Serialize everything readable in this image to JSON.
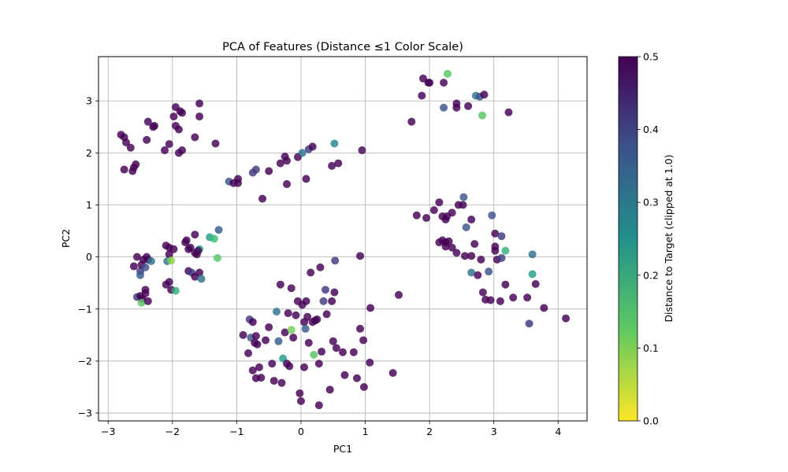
{
  "chart_data": {
    "type": "scatter",
    "title": "PCA of Features (Distance ≤1 Color Scale)",
    "xlabel": "PC1",
    "ylabel": "PC2",
    "xlim": [
      -3.15,
      4.45
    ],
    "ylim": [
      -3.15,
      3.85
    ],
    "xticks": [
      -3,
      -2,
      -1,
      0,
      1,
      2,
      3,
      4
    ],
    "xtick_labels": [
      "−3",
      "−2",
      "−1",
      "0",
      "1",
      "2",
      "3",
      "4"
    ],
    "yticks": [
      -3,
      -2,
      -1,
      0,
      1,
      2,
      3
    ],
    "ytick_labels": [
      "−3",
      "−2",
      "−1",
      "0",
      "1",
      "2",
      "3"
    ],
    "grid": true,
    "colorbar": {
      "label": "Distance to Target (clipped at 1.0)",
      "range": [
        0,
        0.5
      ],
      "ticks": [
        0,
        0.1,
        0.2,
        0.3,
        0.4,
        0.5
      ],
      "tick_labels": [
        "0.0",
        "0.1",
        "0.2",
        "0.3",
        "0.4",
        "0.5"
      ],
      "colormap": "viridis_r"
    },
    "points": [
      [
        -2.8,
        2.35,
        0.5
      ],
      [
        -2.75,
        2.3,
        0.5
      ],
      [
        -2.72,
        2.2,
        0.5
      ],
      [
        -2.65,
        2.1,
        0.5
      ],
      [
        -2.75,
        1.68,
        0.5
      ],
      [
        -2.62,
        1.65,
        0.5
      ],
      [
        -2.6,
        1.72,
        0.5
      ],
      [
        -2.57,
        1.78,
        0.5
      ],
      [
        -2.4,
        2.25,
        0.5
      ],
      [
        -2.38,
        2.6,
        0.5
      ],
      [
        -2.3,
        2.5,
        0.5
      ],
      [
        -2.28,
        2.52,
        0.5
      ],
      [
        -2.12,
        2.05,
        0.5
      ],
      [
        -2.05,
        2.17,
        0.5
      ],
      [
        -1.98,
        2.7,
        0.5
      ],
      [
        -1.95,
        2.52,
        0.5
      ],
      [
        -1.95,
        2.88,
        0.5
      ],
      [
        -1.9,
        2.45,
        0.5
      ],
      [
        -1.88,
        2.8,
        0.5
      ],
      [
        -1.85,
        2.05,
        0.5
      ],
      [
        -1.9,
        2.0,
        0.5
      ],
      [
        -1.85,
        2.77,
        0.5
      ],
      [
        -1.65,
        2.3,
        0.5
      ],
      [
        -1.58,
        2.95,
        0.5
      ],
      [
        -1.58,
        2.7,
        0.5
      ],
      [
        -1.33,
        2.18,
        0.5
      ],
      [
        -1.12,
        1.45,
        0.42
      ],
      [
        -1.05,
        1.42,
        0.5
      ],
      [
        -0.98,
        1.5,
        0.5
      ],
      [
        -0.98,
        1.42,
        0.5
      ],
      [
        -0.75,
        1.62,
        0.45
      ],
      [
        -0.7,
        1.68,
        0.45
      ],
      [
        -0.6,
        1.12,
        0.5
      ],
      [
        -0.5,
        1.65,
        0.5
      ],
      [
        -0.32,
        1.8,
        0.5
      ],
      [
        -0.25,
        1.93,
        0.5
      ],
      [
        -0.22,
        1.85,
        0.5
      ],
      [
        -0.22,
        1.4,
        0.5
      ],
      [
        -0.05,
        1.92,
        0.5
      ],
      [
        0.02,
        2.0,
        0.35
      ],
      [
        0.08,
        1.5,
        0.5
      ],
      [
        0.12,
        2.07,
        0.45
      ],
      [
        0.18,
        2.12,
        0.5
      ],
      [
        0.48,
        1.75,
        0.5
      ],
      [
        0.52,
        2.18,
        0.3
      ],
      [
        0.58,
        1.8,
        0.5
      ],
      [
        0.95,
        2.05,
        0.5
      ],
      [
        1.72,
        2.6,
        0.5
      ],
      [
        1.88,
        3.1,
        0.5
      ],
      [
        1.9,
        3.43,
        0.5
      ],
      [
        1.98,
        3.35,
        0.5
      ],
      [
        2.0,
        3.35,
        0.5
      ],
      [
        2.22,
        2.87,
        0.42
      ],
      [
        2.22,
        3.35,
        0.5
      ],
      [
        2.28,
        3.52,
        0.15
      ],
      [
        2.42,
        2.95,
        0.5
      ],
      [
        2.42,
        2.87,
        0.5
      ],
      [
        2.6,
        2.9,
        0.5
      ],
      [
        2.72,
        3.1,
        0.35
      ],
      [
        2.78,
        3.08,
        0.42
      ],
      [
        2.85,
        3.12,
        0.5
      ],
      [
        2.82,
        2.72,
        0.15
      ],
      [
        3.23,
        2.78,
        0.5
      ],
      [
        1.8,
        0.8,
        0.5
      ],
      [
        1.95,
        0.75,
        0.5
      ],
      [
        2.07,
        0.9,
        0.5
      ],
      [
        2.15,
        1.05,
        0.5
      ],
      [
        2.2,
        0.78,
        0.5
      ],
      [
        2.25,
        0.72,
        0.5
      ],
      [
        2.27,
        0.78,
        0.5
      ],
      [
        2.35,
        0.85,
        0.5
      ],
      [
        2.45,
        1.0,
        0.5
      ],
      [
        2.53,
        1.15,
        0.42
      ],
      [
        2.52,
        1.0,
        0.5
      ],
      [
        2.57,
        0.57,
        0.42
      ],
      [
        2.65,
        0.72,
        0.5
      ],
      [
        2.15,
        0.28,
        0.5
      ],
      [
        2.2,
        0.32,
        0.5
      ],
      [
        2.25,
        0.28,
        0.5
      ],
      [
        2.3,
        0.3,
        0.5
      ],
      [
        2.25,
        0.2,
        0.5
      ],
      [
        2.35,
        0.18,
        0.5
      ],
      [
        2.42,
        0.08,
        0.5
      ],
      [
        2.55,
        0.02,
        0.5
      ],
      [
        2.65,
        0.02,
        0.5
      ],
      [
        2.7,
        0.25,
        0.5
      ],
      [
        2.8,
        -0.05,
        0.5
      ],
      [
        2.65,
        -0.3,
        0.35
      ],
      [
        2.75,
        -0.35,
        0.5
      ],
      [
        2.92,
        -0.28,
        0.42
      ],
      [
        2.97,
        0.8,
        0.42
      ],
      [
        3.02,
        0.45,
        0.5
      ],
      [
        3.02,
        0.2,
        0.5
      ],
      [
        3.02,
        0.12,
        0.5
      ],
      [
        3.05,
        -0.05,
        0.5
      ],
      [
        3.12,
        0.4,
        0.45
      ],
      [
        3.12,
        -0.02,
        0.45
      ],
      [
        3.18,
        0.12,
        0.2
      ],
      [
        2.83,
        -0.68,
        0.5
      ],
      [
        2.87,
        -0.82,
        0.5
      ],
      [
        2.95,
        -0.83,
        0.5
      ],
      [
        3.1,
        -0.85,
        0.5
      ],
      [
        3.18,
        -0.53,
        0.5
      ],
      [
        3.3,
        -0.78,
        0.5
      ],
      [
        3.52,
        -0.78,
        0.5
      ],
      [
        3.6,
        0.05,
        0.35
      ],
      [
        3.6,
        -0.33,
        0.25
      ],
      [
        3.65,
        -0.52,
        0.5
      ],
      [
        3.78,
        -0.98,
        0.5
      ],
      [
        3.55,
        -1.28,
        0.45
      ],
      [
        4.12,
        -1.18,
        0.5
      ],
      [
        -2.55,
        0.0,
        0.5
      ],
      [
        -2.6,
        -0.18,
        0.5
      ],
      [
        -2.5,
        -0.27,
        0.45
      ],
      [
        -2.48,
        -0.15,
        0.5
      ],
      [
        -2.45,
        -0.05,
        0.5
      ],
      [
        -2.4,
        0.0,
        0.5
      ],
      [
        -2.38,
        -0.05,
        0.5
      ],
      [
        -2.42,
        -0.2,
        0.42
      ],
      [
        -2.5,
        -0.35,
        0.4
      ],
      [
        -2.33,
        -0.08,
        0.35
      ],
      [
        -2.55,
        -0.77,
        0.45
      ],
      [
        -2.5,
        -0.75,
        0.5
      ],
      [
        -2.47,
        -0.8,
        0.5
      ],
      [
        -2.42,
        -0.7,
        0.5
      ],
      [
        -2.48,
        -0.88,
        0.15
      ],
      [
        -2.38,
        -0.85,
        0.5
      ],
      [
        -2.42,
        -0.63,
        0.5
      ],
      [
        -2.1,
        0.22,
        0.5
      ],
      [
        -2.05,
        0.18,
        0.5
      ],
      [
        -2.05,
        0.05,
        0.5
      ],
      [
        -2.08,
        -0.08,
        0.35
      ],
      [
        -2.02,
        -0.07,
        0.1
      ],
      [
        -1.98,
        0.15,
        0.5
      ],
      [
        -2.05,
        -0.48,
        0.5
      ],
      [
        -2.1,
        -0.53,
        0.5
      ],
      [
        -2.02,
        -0.63,
        0.5
      ],
      [
        -1.95,
        -0.65,
        0.2
      ],
      [
        -1.8,
        0.28,
        0.5
      ],
      [
        -1.78,
        0.32,
        0.5
      ],
      [
        -1.75,
        0.15,
        0.5
      ],
      [
        -1.72,
        0.18,
        0.5
      ],
      [
        -1.65,
        0.43,
        0.5
      ],
      [
        -1.65,
        0.08,
        0.5
      ],
      [
        -1.62,
        0.05,
        0.5
      ],
      [
        -1.58,
        0.15,
        0.25
      ],
      [
        -1.6,
        0.12,
        0.5
      ],
      [
        -1.75,
        -0.27,
        0.5
      ],
      [
        -1.7,
        -0.3,
        0.45
      ],
      [
        -1.65,
        -0.38,
        0.5
      ],
      [
        -1.58,
        -0.3,
        0.5
      ],
      [
        -1.55,
        -0.42,
        0.35
      ],
      [
        -1.42,
        0.38,
        0.25
      ],
      [
        -1.35,
        0.35,
        0.18
      ],
      [
        -1.28,
        0.52,
        0.4
      ],
      [
        -1.3,
        -0.02,
        0.15
      ],
      [
        -0.9,
        -1.5,
        0.5
      ],
      [
        -0.82,
        -1.85,
        0.5
      ],
      [
        -0.8,
        -1.2,
        0.45
      ],
      [
        -0.78,
        -1.55,
        0.42
      ],
      [
        -0.75,
        -1.25,
        0.5
      ],
      [
        -0.72,
        -1.65,
        0.5
      ],
      [
        -0.7,
        -1.52,
        0.5
      ],
      [
        -0.7,
        -2.33,
        0.5
      ],
      [
        -0.75,
        -2.18,
        0.5
      ],
      [
        -0.68,
        -1.68,
        0.5
      ],
      [
        -0.65,
        -2.12,
        0.5
      ],
      [
        -0.62,
        -2.32,
        0.5
      ],
      [
        -0.55,
        -1.6,
        0.5
      ],
      [
        -0.5,
        -1.35,
        0.5
      ],
      [
        -0.45,
        -2.05,
        0.5
      ],
      [
        -0.42,
        -2.38,
        0.5
      ],
      [
        -0.38,
        -1.05,
        0.35
      ],
      [
        -0.35,
        -1.62,
        0.4
      ],
      [
        -0.32,
        -0.53,
        0.5
      ],
      [
        -0.3,
        -2.42,
        0.5
      ],
      [
        -0.28,
        -1.95,
        0.25
      ],
      [
        -0.25,
        -1.45,
        0.5
      ],
      [
        -0.22,
        -2.05,
        0.5
      ],
      [
        -0.2,
        -1.08,
        0.5
      ],
      [
        -0.18,
        -2.1,
        0.5
      ],
      [
        -0.15,
        -0.6,
        0.5
      ],
      [
        -0.15,
        -1.4,
        0.12
      ],
      [
        -0.12,
        -1.55,
        0.5
      ],
      [
        -0.08,
        -1.12,
        0.5
      ],
      [
        -0.05,
        -0.85,
        0.5
      ],
      [
        -0.02,
        -2.62,
        0.5
      ],
      [
        0.0,
        -2.77,
        0.5
      ],
      [
        0.02,
        -0.92,
        0.5
      ],
      [
        0.05,
        -1.25,
        0.5
      ],
      [
        0.05,
        -2.12,
        0.5
      ],
      [
        0.07,
        -1.38,
        0.4
      ],
      [
        0.08,
        -0.85,
        0.5
      ],
      [
        0.1,
        -1.15,
        0.5
      ],
      [
        0.12,
        -1.65,
        0.5
      ],
      [
        0.15,
        -0.3,
        0.5
      ],
      [
        0.18,
        -1.25,
        0.5
      ],
      [
        0.2,
        -1.88,
        0.15
      ],
      [
        0.22,
        -1.22,
        0.5
      ],
      [
        0.25,
        -1.2,
        0.5
      ],
      [
        0.28,
        -2.05,
        0.5
      ],
      [
        0.28,
        -2.85,
        0.5
      ],
      [
        0.32,
        -1.82,
        0.5
      ],
      [
        0.35,
        -0.85,
        0.45
      ],
      [
        0.38,
        -0.63,
        0.45
      ],
      [
        0.4,
        -1.1,
        0.5
      ],
      [
        0.45,
        -2.55,
        0.5
      ],
      [
        0.48,
        -0.85,
        0.5
      ],
      [
        0.5,
        -1.62,
        0.5
      ],
      [
        0.52,
        -0.68,
        0.5
      ],
      [
        0.53,
        -0.07,
        0.45
      ],
      [
        0.55,
        -1.75,
        0.5
      ],
      [
        0.65,
        -1.83,
        0.5
      ],
      [
        0.68,
        -2.27,
        0.5
      ],
      [
        0.82,
        -1.83,
        0.5
      ],
      [
        0.87,
        -2.33,
        0.5
      ],
      [
        0.92,
        0.02,
        0.5
      ],
      [
        0.92,
        -1.38,
        0.5
      ],
      [
        0.97,
        -1.6,
        0.5
      ],
      [
        0.98,
        -2.5,
        0.5
      ],
      [
        1.07,
        -2.03,
        0.5
      ],
      [
        1.08,
        -0.98,
        0.5
      ],
      [
        1.43,
        -2.23,
        0.5
      ],
      [
        1.52,
        -0.73,
        0.5
      ],
      [
        0.3,
        -0.2,
        0.5
      ]
    ]
  }
}
